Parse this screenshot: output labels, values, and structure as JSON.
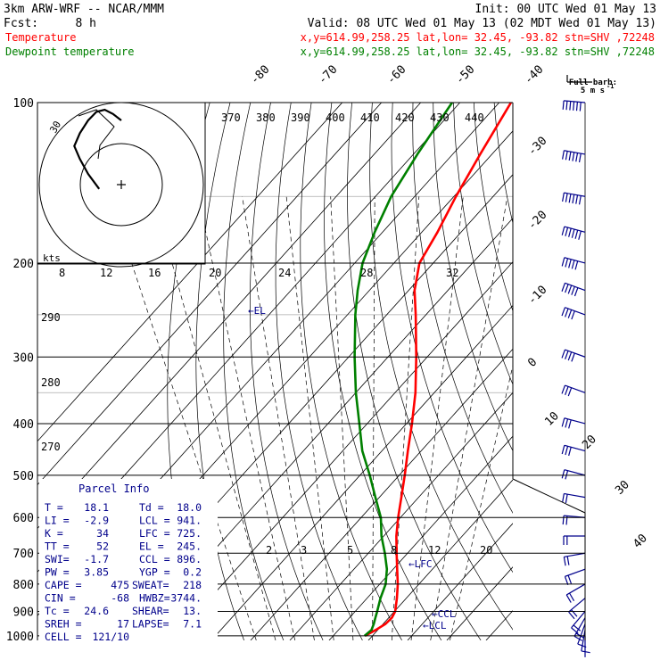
{
  "header": {
    "model": "3km ARW-WRF -- NCAR/MMM",
    "init": "Init: 00 UTC Wed 01 May 13",
    "fcst_label": "Fcst:",
    "fcst_value": "8 h",
    "valid": "Valid: 08 UTC Wed 01 May 13 (02 MDT Wed 01 May 13)",
    "temp_label": "Temperature",
    "temp_info": "x,y=614.99,258.25   lat,lon= 32.45, -93.82   stn=SHV ,72248",
    "dew_label": "Dewpoint temperature",
    "dew_info": "x,y=614.99,258.25   lat,lon= 32.45, -93.82   stn=SHV ,72248",
    "temp_color": "#ff0000",
    "dew_color": "#008000"
  },
  "barb_legend": {
    "line1": "Full barb:",
    "line2": "5 m s",
    "sup": "-1"
  },
  "parcel": {
    "title": "Parcel Info",
    "rows": [
      [
        "T  =",
        "18.1",
        "Td =",
        "18.0"
      ],
      [
        "LI =",
        "-2.9",
        "LCL =",
        "941."
      ],
      [
        "K  =",
        "34",
        "LFC =",
        "725."
      ],
      [
        "TT =",
        "52",
        "EL  =",
        "245."
      ],
      [
        "SWI=",
        "-1.7",
        "CCL =",
        "896."
      ],
      [
        "PW =",
        "3.85",
        "YGP =",
        "0.2"
      ],
      [
        "CAPE =",
        "475",
        "SWEAT=",
        "218"
      ],
      [
        "CIN  =",
        "-68",
        "HWBZ=",
        "3744."
      ],
      [
        "Tc =",
        "24.6",
        "SHEAR=",
        "13."
      ],
      [
        "SREH =",
        "17",
        "LAPSE=",
        "7.1"
      ],
      [
        "CELL =",
        "121/10",
        "",
        ""
      ]
    ]
  },
  "hodograph": {
    "label_kts": "kts",
    "ring_label": "30",
    "hodo_u": [
      -8,
      -12,
      -15,
      -17,
      -15,
      -12,
      -9,
      -6,
      -3,
      0
    ],
    "hodo_v": [
      -2,
      5,
      12,
      18,
      24,
      30,
      34,
      35,
      33,
      30
    ]
  },
  "labels": {
    "el": "←EL",
    "lfc": "←LFC",
    "ccl": "←CCL",
    "lcl": "←LCL"
  },
  "chart_data": {
    "type": "line",
    "title": "Skew-T log-P sounding",
    "xlabel": "Temperature (C)",
    "ylabel": "Pressure (hPa)",
    "pressure_ticks": [
      100,
      200,
      300,
      400,
      500,
      600,
      700,
      800,
      900,
      1000
    ],
    "isotherm_labels": [
      -80,
      -70,
      -60,
      -50,
      -40,
      -30,
      -20,
      -10,
      0,
      10,
      20,
      30,
      40
    ],
    "theta_labels": [
      370,
      380,
      390,
      400,
      410,
      420,
      430,
      440
    ],
    "theta_left_labels": [
      290,
      280,
      270
    ],
    "theta_e_labels": [
      8,
      12,
      16,
      20,
      24,
      28,
      32
    ],
    "mixing_ratio_labels": [
      2,
      3,
      5,
      8,
      12,
      20
    ],
    "series": [
      {
        "name": "Temperature",
        "pressure": [
          1000,
          975,
          950,
          925,
          900,
          850,
          800,
          750,
          700,
          650,
          600,
          550,
          500,
          450,
          400,
          350,
          300,
          250,
          225,
          200,
          175,
          150,
          125,
          100
        ],
        "value": [
          18.1,
          19.5,
          20.6,
          20.8,
          20.2,
          17.6,
          14.6,
          11.0,
          7.2,
          3.2,
          -0.6,
          -4.4,
          -8.6,
          -13.4,
          -18.6,
          -24.8,
          -32.8,
          -42.6,
          -48.5,
          -53.5,
          -56.0,
          -59.5,
          -63.0,
          -67.0
        ]
      },
      {
        "name": "Dewpoint temperature",
        "pressure": [
          1000,
          975,
          950,
          925,
          900,
          850,
          800,
          750,
          700,
          650,
          600,
          550,
          500,
          450,
          400,
          350,
          300,
          250,
          225,
          200,
          175,
          150,
          125,
          100
        ],
        "value": [
          18.0,
          18.4,
          17.6,
          16.6,
          15.6,
          13.4,
          11.5,
          8.4,
          4.2,
          -0.6,
          -5.0,
          -11.0,
          -17.5,
          -25.0,
          -32.0,
          -40.0,
          -48.5,
          -58.0,
          -63.0,
          -68.0,
          -72.0,
          -76.0,
          -79.0,
          -82.0
        ]
      }
    ],
    "wind_barbs": {
      "pressure": [
        1000,
        975,
        950,
        925,
        900,
        850,
        800,
        750,
        700,
        650,
        600,
        550,
        500,
        450,
        400,
        350,
        300,
        250,
        225,
        200,
        175,
        150,
        125,
        100
      ],
      "speed_ms": [
        2,
        4,
        6,
        8,
        10,
        12,
        12,
        10,
        8,
        10,
        12,
        12,
        12,
        14,
        16,
        16,
        18,
        22,
        24,
        26,
        28,
        30,
        32,
        30
      ],
      "dir_deg": [
        180,
        190,
        200,
        210,
        220,
        230,
        240,
        250,
        260,
        270,
        275,
        280,
        285,
        285,
        285,
        290,
        290,
        290,
        290,
        285,
        285,
        280,
        280,
        275
      ]
    }
  }
}
